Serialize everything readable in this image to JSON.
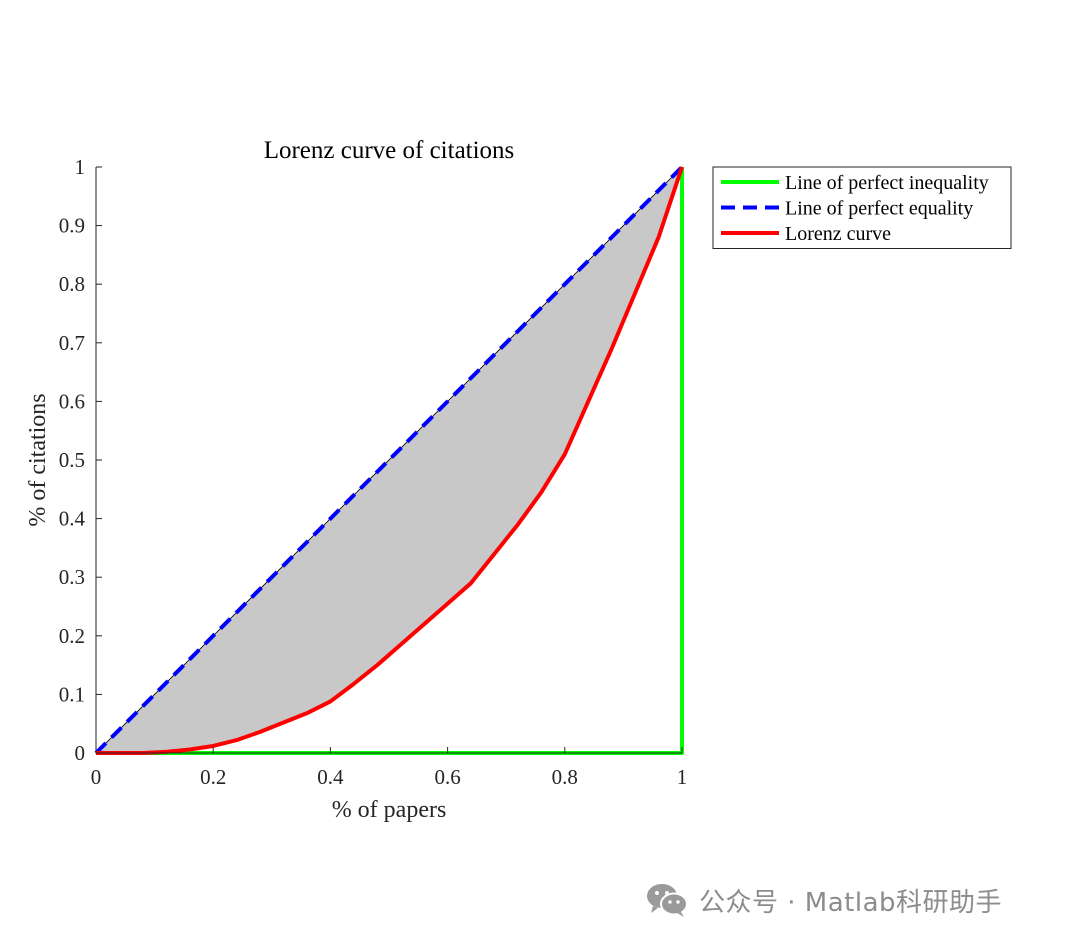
{
  "chart_data": {
    "type": "line",
    "title": "Lorenz curve of citations",
    "xlabel": "% of papers",
    "ylabel": "% of citations",
    "xlim": [
      0,
      1
    ],
    "ylim": [
      0,
      1
    ],
    "xticks": [
      0,
      0.2,
      0.4,
      0.6,
      0.8,
      1
    ],
    "xtick_labels": [
      "0",
      "0.2",
      "0.4",
      "0.6",
      "0.8",
      "1"
    ],
    "yticks": [
      0,
      0.1,
      0.2,
      0.3,
      0.4,
      0.5,
      0.6,
      0.7,
      0.8,
      0.9,
      1
    ],
    "ytick_labels": [
      "0",
      "0.1",
      "0.2",
      "0.3",
      "0.4",
      "0.5",
      "0.6",
      "0.7",
      "0.8",
      "0.9",
      "1"
    ],
    "grid": false,
    "legend_position": "outside-right-top",
    "shaded_area": {
      "between": [
        "Line of perfect equality",
        "Lorenz curve"
      ],
      "color": "#c8c8c8"
    },
    "series": [
      {
        "name": "Line of perfect inequality",
        "color": "#00ff00",
        "style": "solid",
        "x": [
          0,
          1,
          1
        ],
        "y": [
          0,
          0,
          1
        ]
      },
      {
        "name": "Line of perfect equality",
        "color": "#0000ff",
        "style": "dashed",
        "x": [
          0,
          1
        ],
        "y": [
          0,
          1
        ]
      },
      {
        "name": "Lorenz curve",
        "color": "#ff0000",
        "style": "solid",
        "x": [
          0,
          0.04,
          0.08,
          0.12,
          0.16,
          0.2,
          0.24,
          0.28,
          0.32,
          0.36,
          0.4,
          0.44,
          0.48,
          0.52,
          0.56,
          0.6,
          0.64,
          0.68,
          0.72,
          0.76,
          0.8,
          0.84,
          0.88,
          0.92,
          0.96,
          1
        ],
        "y": [
          0,
          0,
          0,
          0.002,
          0.006,
          0.012,
          0.022,
          0.036,
          0.052,
          0.068,
          0.088,
          0.118,
          0.15,
          0.185,
          0.22,
          0.255,
          0.29,
          0.34,
          0.39,
          0.445,
          0.51,
          0.6,
          0.69,
          0.785,
          0.88,
          1
        ]
      }
    ]
  },
  "watermark": {
    "text": "公众号 · Matlab科研助手",
    "icon": "wechat-icon",
    "color": "#8c8c8c"
  }
}
